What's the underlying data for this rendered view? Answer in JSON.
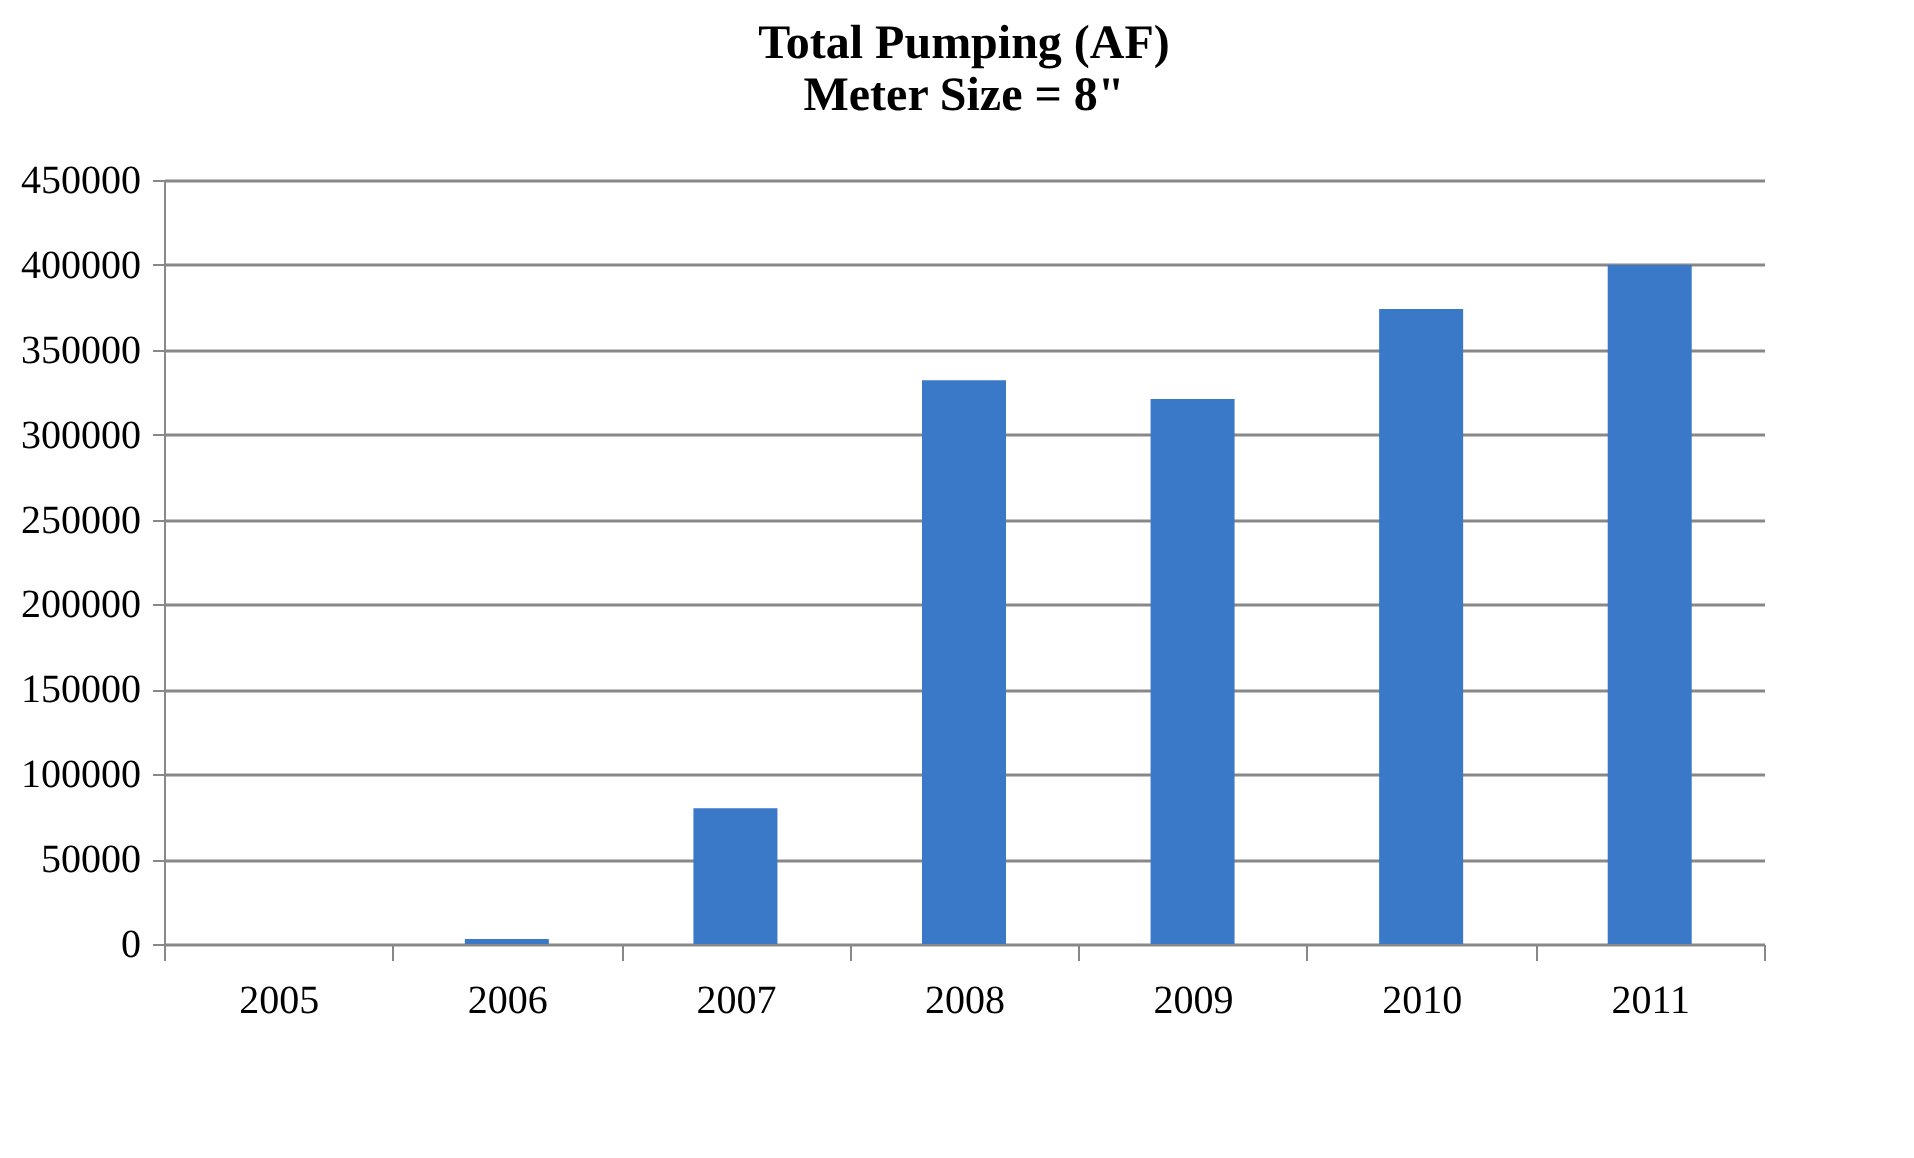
{
  "chart_data": {
    "type": "bar",
    "title": [
      "Total Pumping (AF)",
      "Meter Size = 8\""
    ],
    "categories": [
      "2005",
      "2006",
      "2007",
      "2008",
      "2009",
      "2010",
      "2011"
    ],
    "values": [
      0,
      3000,
      80000,
      332000,
      321000,
      374000,
      400000
    ],
    "color": "#3a78c8",
    "ylim": [
      0,
      450000
    ],
    "yticks": [
      0,
      50000,
      100000,
      150000,
      200000,
      250000,
      300000,
      350000,
      400000,
      450000
    ],
    "grid": "y"
  }
}
